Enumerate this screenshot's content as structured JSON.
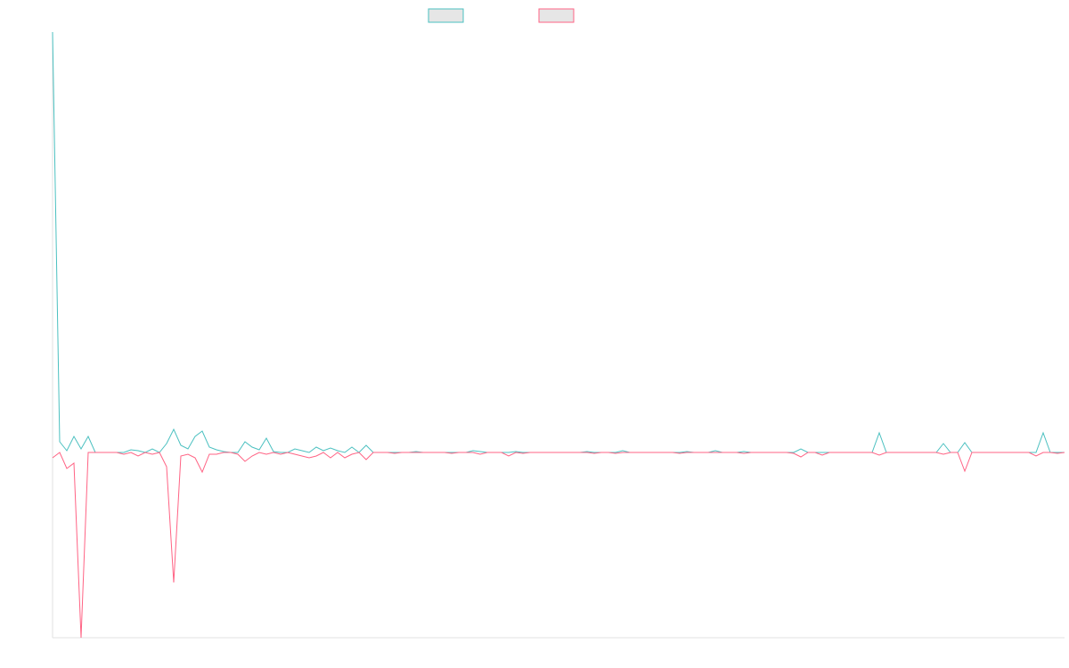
{
  "chart_data": {
    "type": "line",
    "series": [
      {
        "color": "#4bc0c0",
        "values": [
          472,
          12,
          2,
          18,
          4,
          18,
          0,
          0,
          0,
          0,
          0,
          3,
          2,
          0,
          4,
          0,
          10,
          26,
          8,
          4,
          18,
          24,
          6,
          3,
          1,
          0,
          0,
          12,
          6,
          3,
          16,
          1,
          0,
          0,
          4,
          2,
          0,
          6,
          2,
          5,
          2,
          0,
          6,
          0,
          8,
          0,
          0,
          0,
          0,
          0,
          0,
          1,
          0,
          0,
          0,
          0,
          0,
          0,
          0,
          2,
          1,
          0,
          0,
          0,
          0,
          1,
          0,
          0,
          0,
          0,
          0,
          0,
          0,
          0,
          0,
          1,
          0,
          0,
          0,
          0,
          2,
          0,
          0,
          0,
          0,
          0,
          0,
          0,
          0,
          1,
          0,
          0,
          0,
          2,
          0,
          0,
          0,
          1,
          0,
          0,
          0,
          0,
          0,
          0,
          0,
          4,
          0,
          0,
          0,
          0,
          0,
          0,
          0,
          0,
          0,
          0,
          22,
          0,
          0,
          0,
          0,
          0,
          0,
          0,
          0,
          10,
          0,
          0,
          11,
          0,
          0,
          0,
          0,
          0,
          0,
          0,
          0,
          0,
          0,
          22,
          0,
          0,
          0
        ]
      },
      {
        "color": "#ff6384",
        "values": [
          -6,
          0,
          -18,
          -12,
          -208,
          0,
          0,
          0,
          0,
          0,
          -2,
          0,
          -4,
          0,
          -2,
          0,
          -16,
          -146,
          -4,
          -2,
          -6,
          -22,
          -2,
          -2,
          0,
          0,
          -2,
          -10,
          -4,
          0,
          -2,
          0,
          -2,
          0,
          -2,
          -4,
          -6,
          -4,
          0,
          -6,
          0,
          -6,
          -2,
          0,
          -8,
          0,
          0,
          0,
          -1,
          0,
          0,
          0,
          0,
          0,
          0,
          0,
          -1,
          0,
          0,
          0,
          -2,
          0,
          0,
          0,
          -4,
          0,
          -1,
          0,
          0,
          0,
          0,
          0,
          0,
          0,
          0,
          0,
          -1,
          0,
          0,
          -1,
          0,
          0,
          0,
          0,
          0,
          0,
          0,
          0,
          -1,
          0,
          0,
          0,
          0,
          0,
          0,
          0,
          0,
          -1,
          0,
          0,
          0,
          0,
          0,
          0,
          -1,
          -5,
          0,
          0,
          -3,
          0,
          0,
          0,
          0,
          0,
          0,
          0,
          -3,
          0,
          0,
          0,
          0,
          0,
          0,
          0,
          0,
          -2,
          0,
          0,
          -21,
          0,
          0,
          0,
          0,
          0,
          0,
          0,
          0,
          0,
          -4,
          0,
          0,
          -1,
          0
        ]
      }
    ],
    "ylim": [
      -208,
      472
    ]
  }
}
